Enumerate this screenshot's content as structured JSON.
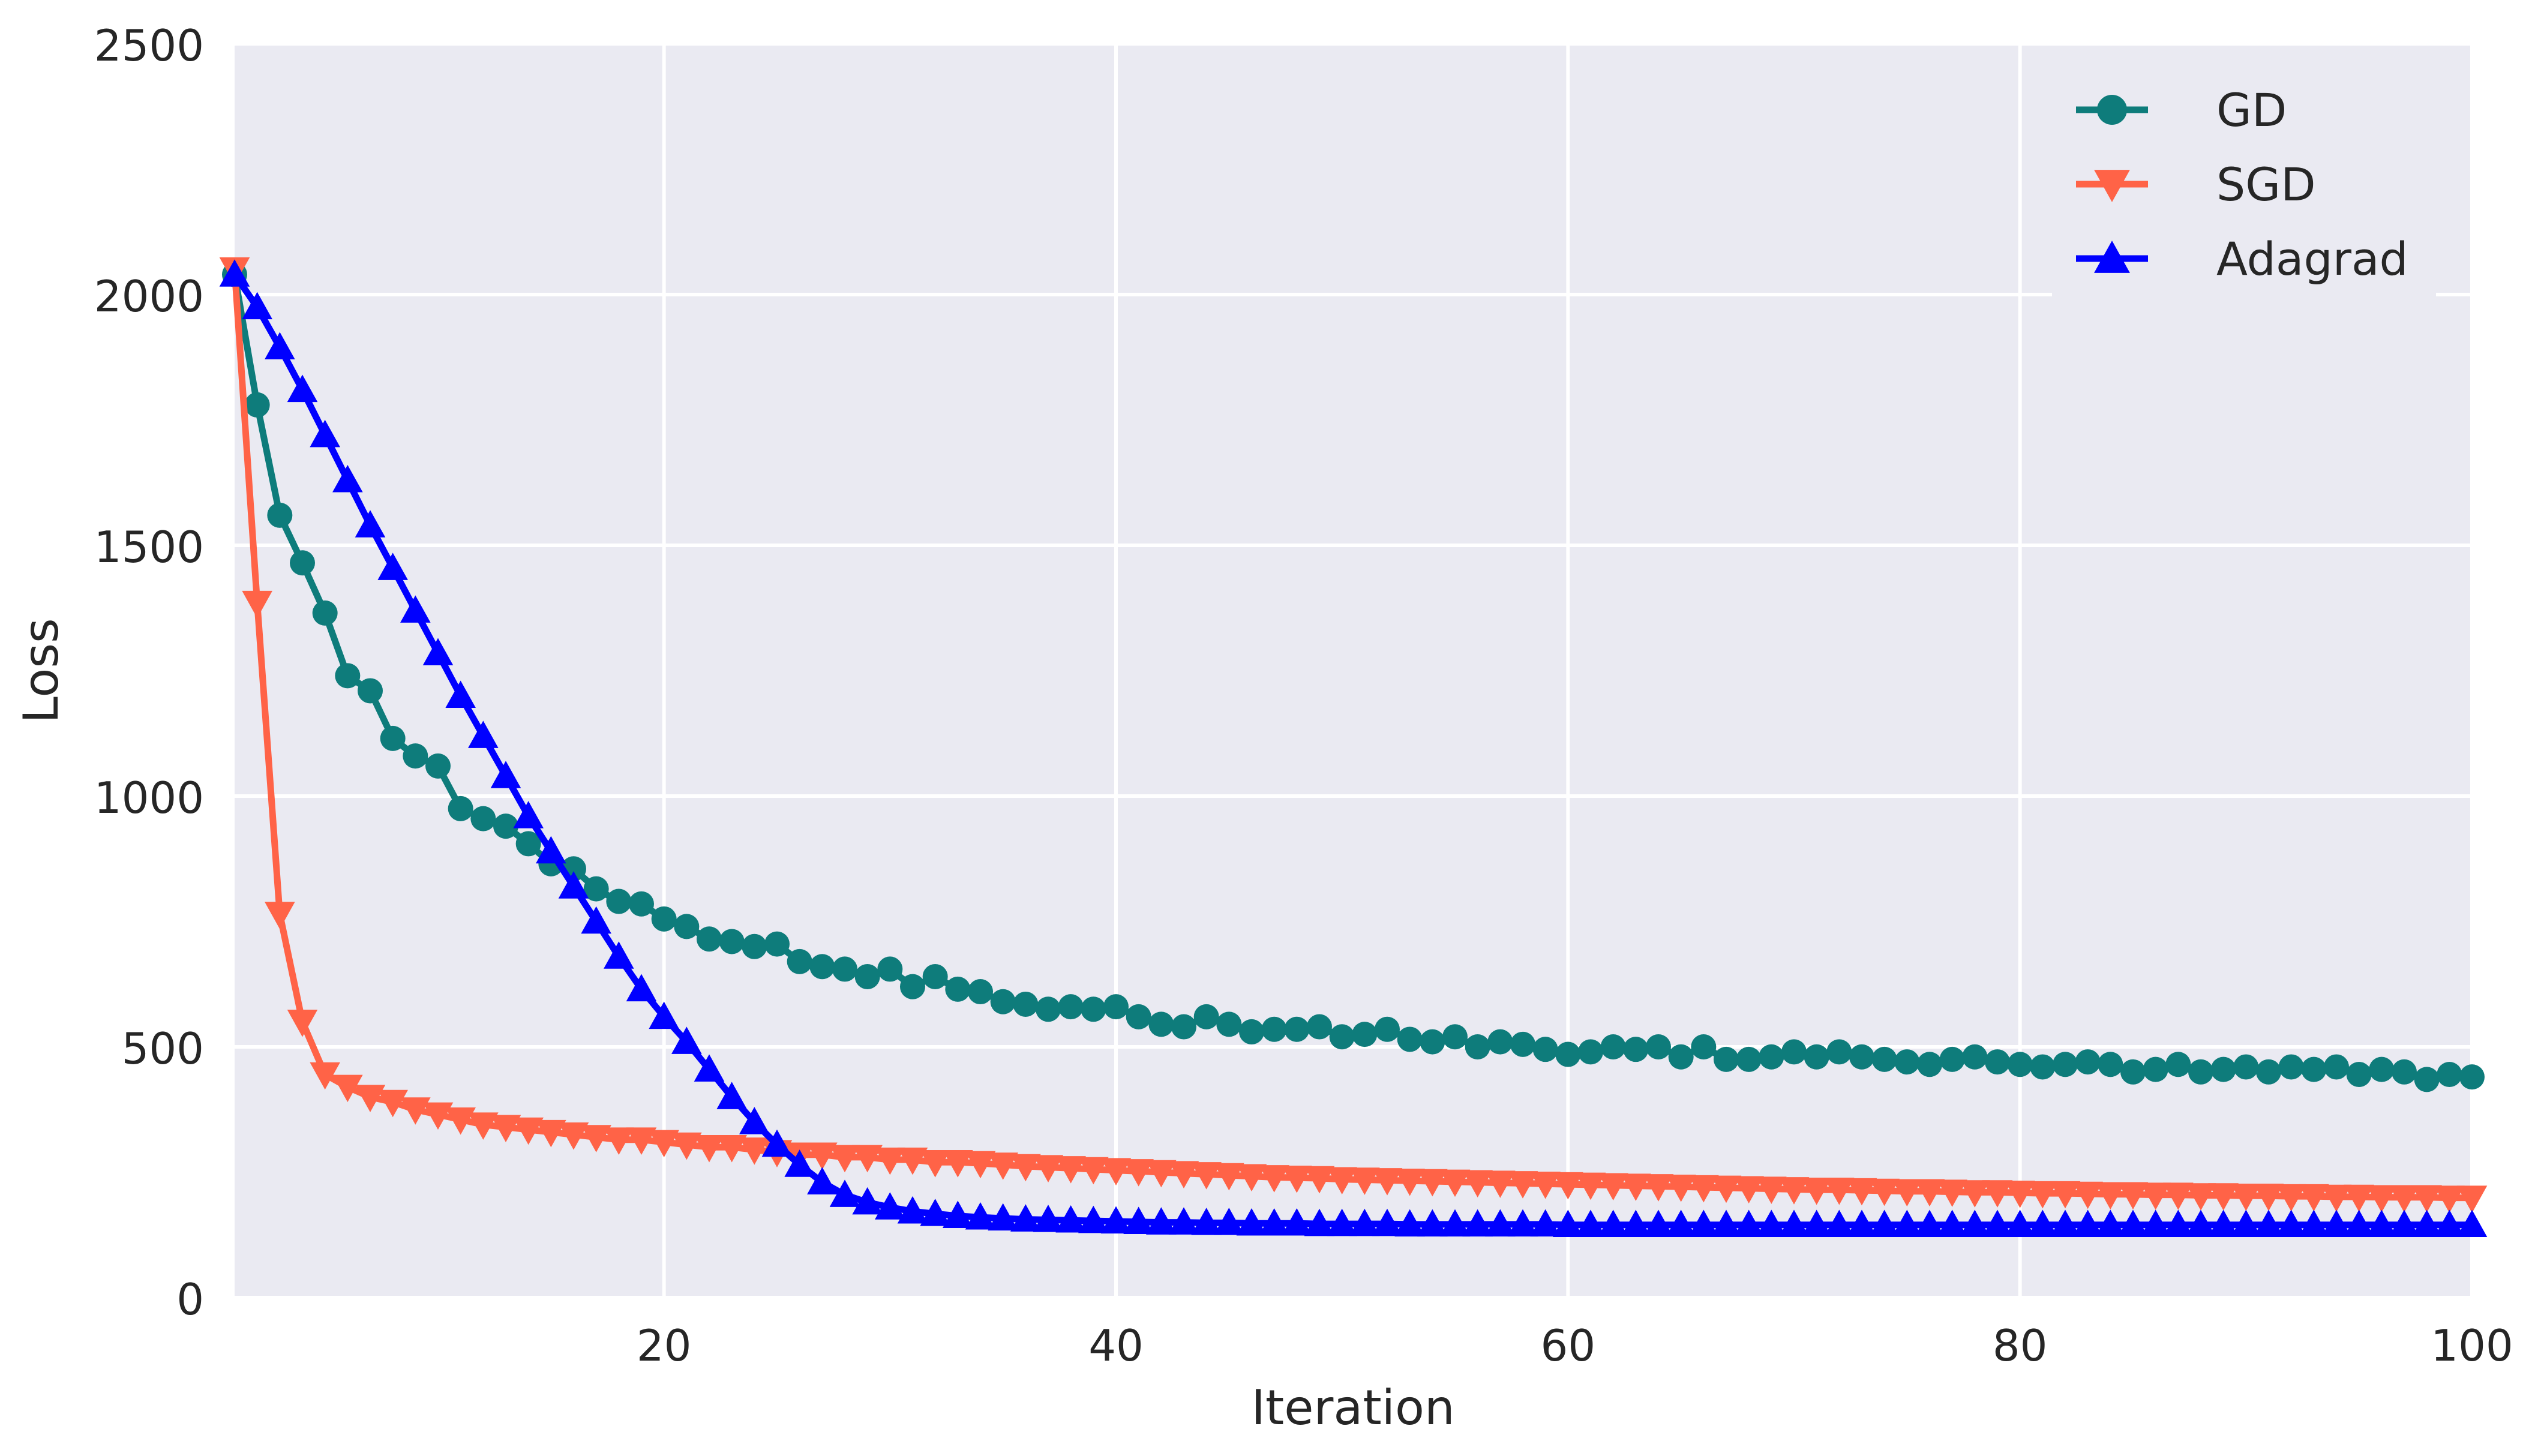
{
  "chart_data": {
    "type": "line",
    "title": "",
    "xlabel": "Iteration",
    "ylabel": "Loss",
    "xlim": [
      1,
      100
    ],
    "ylim": [
      0,
      2500
    ],
    "x_ticks": [
      20,
      40,
      60,
      80,
      100
    ],
    "x_tick_labels": [
      "20",
      "40",
      "60",
      "80",
      "100"
    ],
    "y_ticks": [
      0,
      500,
      1000,
      1500,
      2000,
      2500
    ],
    "y_tick_labels": [
      "0",
      "500",
      "1000",
      "1500",
      "2000",
      "2500"
    ],
    "grid": true,
    "legend_position": "top-right",
    "background_color": "#eaeaf2",
    "grid_color": "#ffffff",
    "x": [
      1,
      2,
      3,
      4,
      5,
      6,
      7,
      8,
      9,
      10,
      11,
      12,
      13,
      14,
      15,
      16,
      17,
      18,
      19,
      20,
      21,
      22,
      23,
      24,
      25,
      26,
      27,
      28,
      29,
      30,
      31,
      32,
      33,
      34,
      35,
      36,
      37,
      38,
      39,
      40,
      41,
      42,
      43,
      44,
      45,
      46,
      47,
      48,
      49,
      50,
      51,
      52,
      53,
      54,
      55,
      56,
      57,
      58,
      59,
      60,
      61,
      62,
      63,
      64,
      65,
      66,
      67,
      68,
      69,
      70,
      71,
      72,
      73,
      74,
      75,
      76,
      77,
      78,
      79,
      80,
      81,
      82,
      83,
      84,
      85,
      86,
      87,
      88,
      89,
      90,
      91,
      92,
      93,
      94,
      95,
      96,
      97,
      98,
      99,
      100
    ],
    "series": [
      {
        "name": "GD",
        "color": "#0e7c7b",
        "marker": "circle",
        "values": [
          2040,
          1780,
          1560,
          1465,
          1365,
          1240,
          1210,
          1115,
          1080,
          1060,
          975,
          955,
          940,
          905,
          865,
          855,
          815,
          790,
          785,
          755,
          740,
          715,
          710,
          700,
          705,
          670,
          660,
          655,
          640,
          655,
          620,
          640,
          615,
          610,
          590,
          585,
          575,
          580,
          575,
          580,
          560,
          545,
          540,
          560,
          545,
          530,
          535,
          535,
          540,
          520,
          525,
          535,
          515,
          510,
          520,
          500,
          510,
          505,
          495,
          485,
          490,
          500,
          495,
          500,
          480,
          500,
          475,
          475,
          480,
          490,
          480,
          490,
          480,
          475,
          470,
          465,
          475,
          480,
          470,
          465,
          460,
          465,
          470,
          465,
          450,
          455,
          465,
          450,
          455,
          460,
          450,
          460,
          455,
          460,
          445,
          455,
          450,
          435,
          445,
          440
        ]
      },
      {
        "name": "SGD",
        "color": "#ff6347",
        "marker": "triangle-down",
        "values": [
          2050,
          1385,
          765,
          550,
          445,
          420,
          400,
          390,
          375,
          365,
          355,
          345,
          340,
          335,
          330,
          325,
          320,
          315,
          315,
          310,
          305,
          300,
          300,
          295,
          290,
          285,
          285,
          280,
          280,
          275,
          275,
          270,
          270,
          268,
          265,
          262,
          260,
          258,
          256,
          254,
          252,
          250,
          248,
          246,
          244,
          242,
          240,
          239,
          238,
          236,
          235,
          234,
          233,
          232,
          231,
          230,
          229,
          228,
          227,
          226,
          225,
          224,
          223,
          222,
          221,
          220,
          219,
          218,
          217,
          216,
          215,
          215,
          214,
          213,
          212,
          212,
          211,
          210,
          210,
          209,
          208,
          208,
          207,
          206,
          206,
          205,
          205,
          204,
          204,
          203,
          203,
          202,
          202,
          201,
          201,
          200,
          200,
          200,
          199,
          199
        ]
      },
      {
        "name": "Adagrad",
        "color": "#0000ff",
        "marker": "triangle-up",
        "values": [
          2040,
          1975,
          1895,
          1810,
          1720,
          1630,
          1540,
          1455,
          1370,
          1285,
          1200,
          1120,
          1040,
          960,
          890,
          820,
          750,
          680,
          615,
          560,
          510,
          455,
          400,
          350,
          305,
          265,
          230,
          205,
          190,
          180,
          172,
          167,
          163,
          160,
          158,
          156,
          155,
          154,
          153,
          152,
          151,
          150,
          150,
          149,
          149,
          148,
          148,
          148,
          147,
          147,
          147,
          147,
          146,
          146,
          146,
          146,
          146,
          146,
          146,
          145,
          145,
          145,
          145,
          145,
          145,
          145,
          145,
          145,
          145,
          145,
          145,
          145,
          145,
          145,
          145,
          145,
          145,
          145,
          145,
          145,
          145,
          145,
          145,
          145,
          145,
          145,
          145,
          145,
          145,
          145,
          145,
          145,
          145,
          145,
          145,
          145,
          145,
          145,
          145,
          145
        ]
      }
    ]
  }
}
